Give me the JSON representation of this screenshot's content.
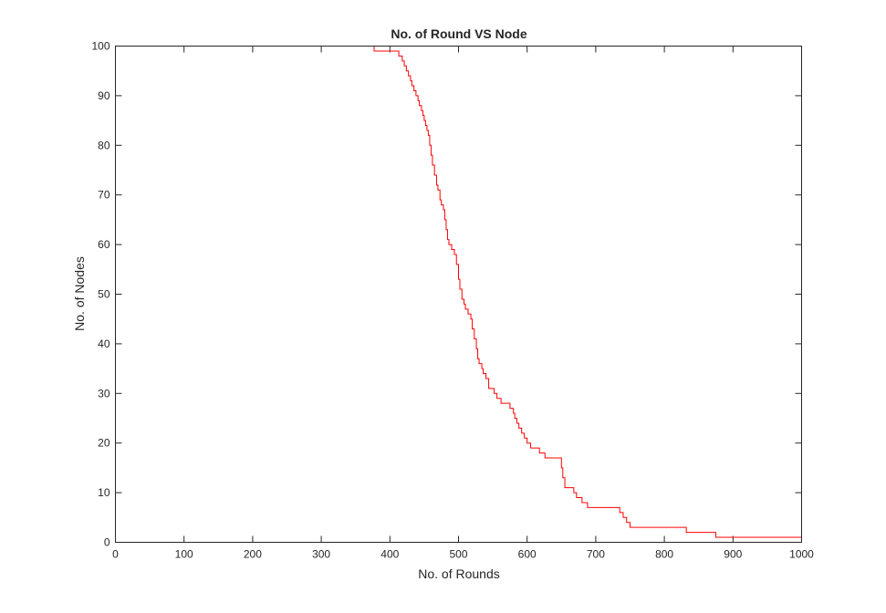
{
  "chart_data": {
    "type": "line",
    "title": "No. of Round VS Node",
    "xlabel": "No. of Rounds",
    "ylabel": "No. of Nodes",
    "xlim": [
      0,
      1000
    ],
    "ylim": [
      0,
      100
    ],
    "xticks": [
      0,
      100,
      200,
      300,
      400,
      500,
      600,
      700,
      800,
      900,
      1000
    ],
    "yticks": [
      0,
      10,
      20,
      30,
      40,
      50,
      60,
      70,
      80,
      90,
      100
    ],
    "grid": false,
    "line_style": "stairs",
    "series": [
      {
        "color": "#ff0000",
        "x": [
          0,
          377,
          410,
          413,
          418,
          421,
          424,
          427,
          430,
          432,
          435,
          438,
          441,
          443,
          446,
          448,
          450,
          452,
          454,
          456,
          458,
          460,
          462,
          465,
          468,
          470,
          473,
          475,
          478,
          480,
          482,
          484,
          486,
          488,
          490,
          492,
          494,
          497,
          500,
          502,
          505,
          508,
          510,
          514,
          518,
          520,
          523,
          526,
          528,
          530,
          532,
          534,
          536,
          540,
          544,
          548,
          552,
          556,
          562,
          568,
          575,
          580,
          582,
          585,
          588,
          592,
          596,
          600,
          605,
          608,
          612,
          618,
          626,
          630,
          635,
          640,
          650,
          652,
          655,
          658,
          668,
          672,
          675,
          680,
          684,
          688,
          694,
          700,
          735,
          740,
          745,
          750,
          758,
          775,
          832,
          875,
          1000
        ],
        "y": [
          100,
          99,
          99,
          98,
          97,
          96,
          95,
          94,
          93,
          92,
          91,
          90,
          89,
          88,
          87,
          86,
          85,
          84,
          83,
          82,
          80,
          78,
          76,
          74,
          72,
          71,
          69,
          68,
          67,
          65,
          63,
          61,
          60,
          60,
          59,
          59,
          58,
          56,
          53,
          51,
          49,
          48,
          47,
          46,
          45,
          43,
          41,
          39,
          37,
          36,
          36,
          35,
          34,
          33,
          31,
          31,
          30,
          29,
          28,
          28,
          27,
          26,
          25,
          24,
          23,
          22,
          21,
          20,
          19,
          19,
          19,
          18,
          17,
          17,
          17,
          17,
          15,
          13,
          11,
          11,
          10,
          9,
          9,
          8,
          8,
          7,
          7,
          7,
          6,
          5,
          4,
          3,
          3,
          3,
          2,
          1,
          1
        ]
      }
    ]
  }
}
